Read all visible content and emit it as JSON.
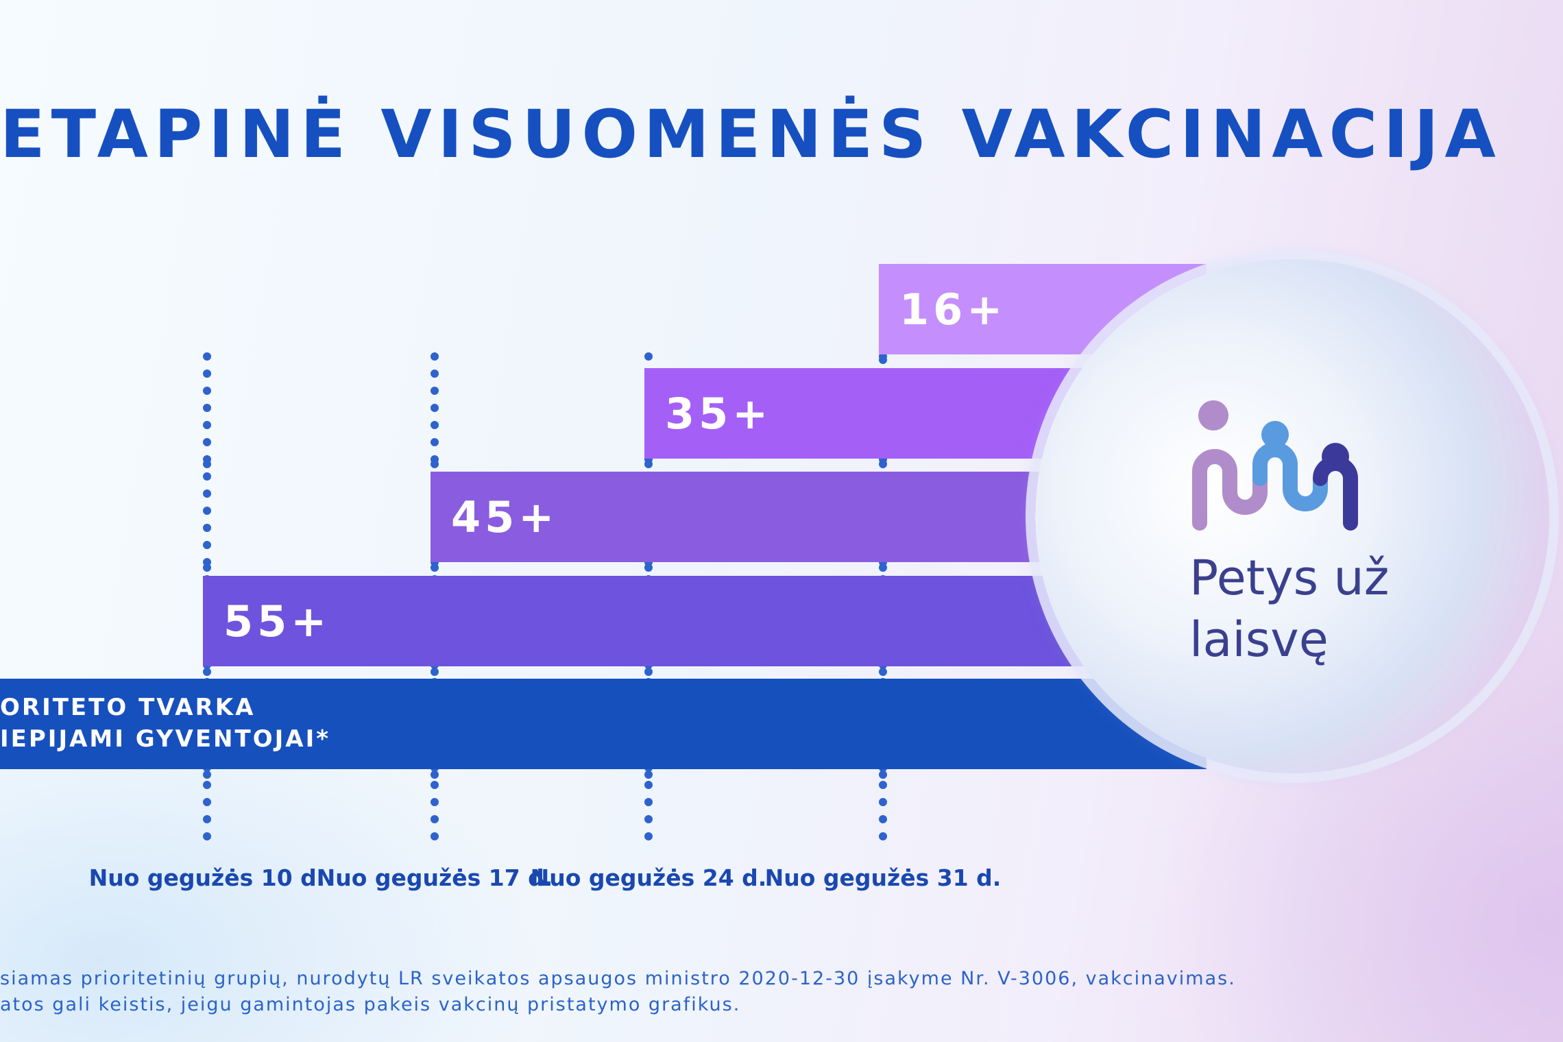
{
  "title": "ETAPINĖ VISUOMENĖS VAKCINACIJA",
  "chart_data": {
    "type": "bar",
    "title": "ETAPINĖ VISUOMENĖS VAKCINACIJA",
    "timeline": [
      "Nuo gegužės 10 d.",
      "Nuo gegužės 17 d.",
      "Nuo gegužės 24 d.",
      "Nuo gegužės 31 d."
    ],
    "categories": [
      "16+",
      "35+",
      "45+",
      "55+",
      "ORITETO TVARKA\nIEPIJAMI GYVENTOJAI*"
    ],
    "series": [
      {
        "label": "16+",
        "start": "Nuo gegužės 31 d.",
        "color": "#c48ffc"
      },
      {
        "label": "35+",
        "start": "Nuo gegužės 24 d.",
        "color": "#a45ff7"
      },
      {
        "label": "45+",
        "start": "Nuo gegužės 17 d.",
        "color": "#8a5ce0"
      },
      {
        "label": "55+",
        "start": "Nuo gegužės 10 d.",
        "color": "#6d53dd"
      },
      {
        "label": "ORITETO TVARKA\nIEPIJAMI GYVENTOJAI*",
        "start": "",
        "color": "#1650bd"
      }
    ],
    "grid": false,
    "legend": "none"
  },
  "footnote": {
    "line1": "siamas prioritetinių grupių, nurodytų LR sveikatos apsaugos ministro 2020-12-30 įsakyme Nr. V-3006, vakcinavimas.",
    "line2": "atos gali keistis, jeigu gamintojas pakeis vakcinų pristatymo grafikus."
  },
  "logo": {
    "line1": "Petys už",
    "line2": "laisvę",
    "colors": {
      "lilac": "#b08ccb",
      "blue": "#5a9be0",
      "navy": "#3b3a9a"
    }
  }
}
